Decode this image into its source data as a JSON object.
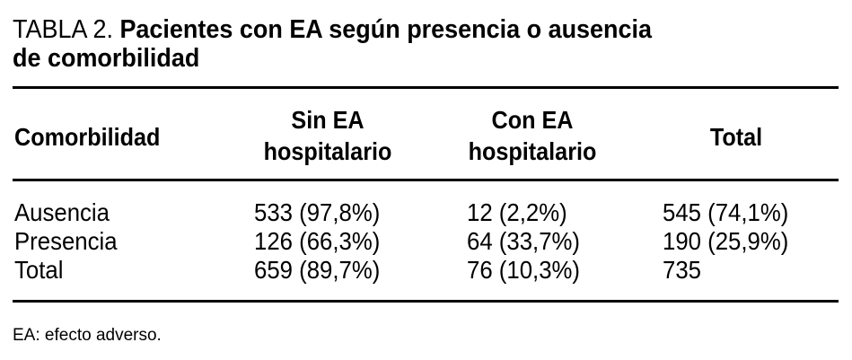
{
  "title": {
    "label": "TABLA 2.",
    "text_line1": "Pacientes con EA según presencia o ausencia",
    "text_line2": "de comorbilidad"
  },
  "table": {
    "headers": [
      {
        "line1": "Comorbilidad"
      },
      {
        "line1": "Sin EA",
        "line2": "hospitalario"
      },
      {
        "line1": "Con EA",
        "line2": "hospitalario"
      },
      {
        "line1": "Total"
      }
    ],
    "rows": [
      [
        "Ausencia",
        "533 (97,8%)",
        "12 (2,2%)",
        "545 (74,1%)"
      ],
      [
        "Presencia",
        "126 (66,3%)",
        "64 (33,7%)",
        "190 (25,9%)"
      ],
      [
        "Total",
        "659 (89,7%)",
        "76 (10,3%)",
        "735"
      ]
    ]
  },
  "footnote": "EA: efecto adverso."
}
